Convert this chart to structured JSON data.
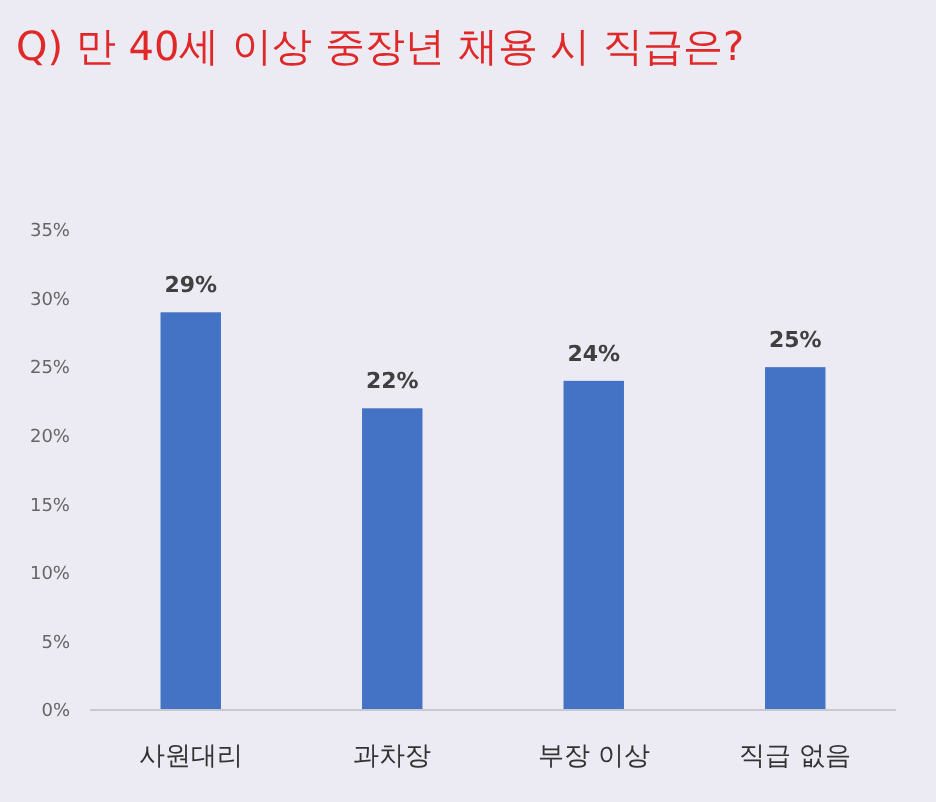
{
  "chart_data": {
    "type": "bar",
    "title": "Q) 만 40세 이상 중장년 채용 시 직급은?",
    "categories": [
      "사원대리",
      "과차장",
      "부장 이상",
      "직급 없음"
    ],
    "values": [
      29,
      22,
      24,
      25
    ],
    "value_labels": [
      "29%",
      "22%",
      "24%",
      "25%"
    ],
    "color": "#4472c4",
    "ylim": [
      0,
      35
    ],
    "yticks": [
      {
        "value": 0,
        "label": "0%"
      },
      {
        "value": 5,
        "label": "5%"
      },
      {
        "value": 10,
        "label": "10%"
      },
      {
        "value": 15,
        "label": "15%"
      },
      {
        "value": 20,
        "label": "20%"
      },
      {
        "value": 25,
        "label": "25%"
      },
      {
        "value": 30,
        "label": "30%"
      },
      {
        "value": 35,
        "label": "35%"
      }
    ],
    "grid": false
  }
}
